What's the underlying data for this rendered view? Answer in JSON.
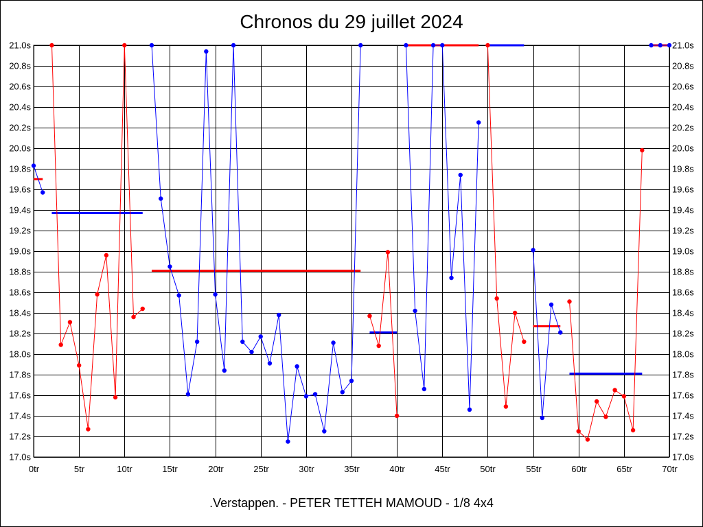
{
  "title": "Chronos du 29 juillet 2024",
  "subtitle": ".Verstappen. - PETER TETTEH MAMOUD - 1/8 4x4",
  "colors": {
    "red": "#ff0000",
    "blue": "#0000ff",
    "grid": "#000000"
  },
  "chart_data": {
    "type": "line",
    "title": "Chronos du 29 juillet 2024",
    "xlabel": "",
    "ylabel": "",
    "xlim": [
      0,
      70
    ],
    "ylim": [
      17.0,
      21.0
    ],
    "grid": true,
    "x_ticks": [
      {
        "v": 0,
        "label": "0tr"
      },
      {
        "v": 5,
        "label": "5tr"
      },
      {
        "v": 10,
        "label": "10tr"
      },
      {
        "v": 15,
        "label": "15tr"
      },
      {
        "v": 20,
        "label": "20tr"
      },
      {
        "v": 25,
        "label": "25tr"
      },
      {
        "v": 30,
        "label": "30tr"
      },
      {
        "v": 35,
        "label": "35tr"
      },
      {
        "v": 40,
        "label": "40tr"
      },
      {
        "v": 45,
        "label": "45tr"
      },
      {
        "v": 50,
        "label": "50tr"
      },
      {
        "v": 55,
        "label": "55tr"
      },
      {
        "v": 60,
        "label": "60tr"
      },
      {
        "v": 65,
        "label": "65tr"
      },
      {
        "v": 70,
        "label": "70tr"
      }
    ],
    "y_ticks": [
      {
        "v": 17.0,
        "label": "17.0s"
      },
      {
        "v": 17.2,
        "label": "17.2s"
      },
      {
        "v": 17.4,
        "label": "17.4s"
      },
      {
        "v": 17.6,
        "label": "17.6s"
      },
      {
        "v": 17.8,
        "label": "17.8s"
      },
      {
        "v": 18.0,
        "label": "18.0s"
      },
      {
        "v": 18.2,
        "label": "18.2s"
      },
      {
        "v": 18.4,
        "label": "18.4s"
      },
      {
        "v": 18.6,
        "label": "18.6s"
      },
      {
        "v": 18.8,
        "label": "18.8s"
      },
      {
        "v": 19.0,
        "label": "19.0s"
      },
      {
        "v": 19.2,
        "label": "19.2s"
      },
      {
        "v": 19.4,
        "label": "19.4s"
      },
      {
        "v": 19.6,
        "label": "19.6s"
      },
      {
        "v": 19.8,
        "label": "19.8s"
      },
      {
        "v": 20.0,
        "label": "20.0s"
      },
      {
        "v": 20.2,
        "label": "20.2s"
      },
      {
        "v": 20.4,
        "label": "20.4s"
      },
      {
        "v": 20.6,
        "label": "20.6s"
      },
      {
        "v": 20.8,
        "label": "20.8s"
      },
      {
        "v": 21.0,
        "label": "21.0s"
      }
    ],
    "series": [
      {
        "color": "blue",
        "points": [
          [
            0,
            19.83
          ],
          [
            1,
            19.57
          ]
        ],
        "avg": {
          "x": [
            0,
            0
          ],
          "y": 0
        }
      },
      {
        "color": "red",
        "points": [
          [
            2,
            21.0
          ],
          [
            3,
            18.09
          ],
          [
            4,
            18.31
          ],
          [
            5,
            17.89
          ],
          [
            6,
            17.27
          ],
          [
            7,
            18.58
          ],
          [
            8,
            18.96
          ],
          [
            9,
            17.58
          ],
          [
            10,
            21.0
          ],
          [
            11,
            18.36
          ],
          [
            12,
            18.44
          ]
        ]
      },
      {
        "color": "blue",
        "points": [
          [
            13,
            21.0
          ],
          [
            14,
            19.51
          ],
          [
            15,
            18.85
          ],
          [
            16,
            18.57
          ],
          [
            17,
            17.61
          ],
          [
            18,
            18.12
          ],
          [
            19,
            20.94
          ],
          [
            20,
            18.58
          ],
          [
            21,
            17.84
          ],
          [
            22,
            21.0
          ],
          [
            23,
            18.12
          ],
          [
            24,
            18.02
          ],
          [
            25,
            18.17
          ],
          [
            26,
            17.91
          ],
          [
            27,
            18.38
          ],
          [
            28,
            17.15
          ],
          [
            29,
            17.88
          ],
          [
            30,
            17.59
          ],
          [
            31,
            17.61
          ],
          [
            32,
            17.25
          ],
          [
            33,
            18.11
          ],
          [
            34,
            17.63
          ],
          [
            35,
            17.74
          ],
          [
            36,
            21.0
          ]
        ]
      },
      {
        "color": "red",
        "points": [
          [
            37,
            18.37
          ],
          [
            38,
            18.08
          ],
          [
            39,
            18.99
          ],
          [
            40,
            17.4
          ]
        ]
      },
      {
        "color": "blue",
        "points": [
          [
            41,
            21.0
          ],
          [
            42,
            18.42
          ],
          [
            43,
            17.66
          ],
          [
            44,
            21.0
          ],
          [
            45,
            21.0
          ],
          [
            46,
            18.74
          ],
          [
            47,
            19.74
          ],
          [
            48,
            17.46
          ],
          [
            49,
            20.25
          ]
        ]
      },
      {
        "color": "red",
        "points": [
          [
            50,
            21.0
          ],
          [
            51,
            18.54
          ],
          [
            52,
            17.49
          ],
          [
            53,
            18.4
          ],
          [
            54,
            18.12
          ]
        ]
      },
      {
        "color": "blue",
        "points": [
          [
            55,
            19.01
          ],
          [
            56,
            17.38
          ],
          [
            57,
            18.48
          ],
          [
            58,
            18.21
          ]
        ]
      },
      {
        "color": "red",
        "points": [
          [
            59,
            18.51
          ],
          [
            60,
            17.25
          ],
          [
            61,
            17.17
          ],
          [
            62,
            17.54
          ],
          [
            63,
            17.39
          ],
          [
            64,
            17.65
          ],
          [
            65,
            17.59
          ],
          [
            66,
            17.26
          ],
          [
            67,
            19.98
          ]
        ]
      },
      {
        "color": "blue",
        "points": [
          [
            68,
            21.0
          ],
          [
            69,
            21.0
          ],
          [
            70,
            21.0
          ]
        ]
      }
    ],
    "average_lines": [
      {
        "color": "red",
        "x": [
          0.0,
          1.0
        ],
        "y": 19.7
      },
      {
        "color": "blue",
        "x": [
          2.0,
          12.0
        ],
        "y": 19.37
      },
      {
        "color": "red",
        "x": [
          13.0,
          36.0
        ],
        "y": 18.81
      },
      {
        "color": "blue",
        "x": [
          37.0,
          40.0
        ],
        "y": 18.21
      },
      {
        "color": "red",
        "x": [
          41.0,
          49.0
        ],
        "y": 21.0
      },
      {
        "color": "blue",
        "x": [
          50.0,
          54.0
        ],
        "y": 21.0
      },
      {
        "color": "red",
        "x": [
          55.0,
          58.0
        ],
        "y": 18.27
      },
      {
        "color": "blue",
        "x": [
          59.0,
          67.0
        ],
        "y": 17.81
      },
      {
        "color": "red",
        "x": [
          68.0,
          70.0
        ],
        "y": 21.0
      }
    ]
  }
}
